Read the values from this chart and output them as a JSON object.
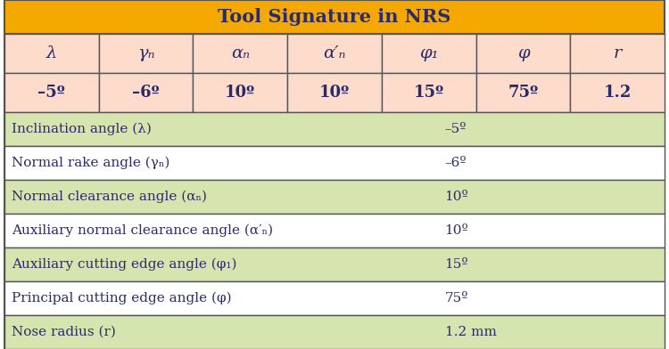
{
  "title": "Tool Signature in NRS",
  "title_bg": "#F5A800",
  "title_color": "#2B2B6B",
  "header_row": [
    "λ",
    "γₙ",
    "αₙ",
    "α′ₙ",
    "φ₁",
    "φ",
    "r"
  ],
  "values_row": [
    "–5º",
    "–6º",
    "10º",
    "10º",
    "15º",
    "75º",
    "1.2"
  ],
  "header_bg": "#FDDCCC",
  "values_bg": "#FDDCCC",
  "bottom_rows": [
    [
      "Inclination angle (λ)",
      "–5º"
    ],
    [
      "Normal rake angle (γₙ)",
      "–6º"
    ],
    [
      "Normal clearance angle (αₙ)",
      "10º"
    ],
    [
      "Auxiliary normal clearance angle (α′ₙ)",
      "10º"
    ],
    [
      "Auxiliary cutting edge angle (φ₁)",
      "15º"
    ],
    [
      "Principal cutting edge angle (φ)",
      "75º"
    ],
    [
      "Nose radius (r)",
      "1.2 mm"
    ]
  ],
  "row_bg_odd": "#D6E4B0",
  "row_bg_even": "#FFFFFF",
  "row_text_color": "#2B2B6B",
  "border_color": "#555555",
  "fig_width": 7.5,
  "fig_height": 3.92,
  "dpi": 100
}
